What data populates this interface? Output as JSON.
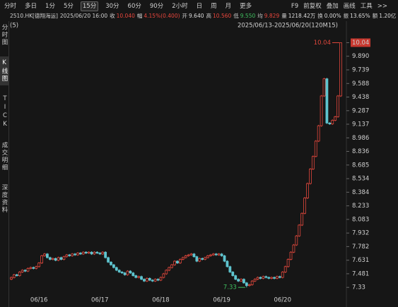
{
  "toolbar": {
    "periods": [
      "分时",
      "多日",
      "1分",
      "5分",
      "15分",
      "30分",
      "60分",
      "90分",
      "2小时",
      "日",
      "周",
      "月",
      "更多"
    ],
    "tools": [
      "F9",
      "前复权",
      "叠加",
      "画线",
      "工具",
      ">>"
    ]
  },
  "sidebar": [
    "分时图",
    "K线图",
    "TICK",
    "成交明细",
    "深度资料"
  ],
  "quote": {
    "symbol": "2510.HK[德翔海运]",
    "datetime": "2025/06/20 16:00",
    "fields": [
      {
        "label": "收",
        "value": "10.040",
        "color": "#e8463c"
      },
      {
        "label": "幅",
        "value": "4.15%(0.400)",
        "color": "#e8463c"
      },
      {
        "label": "开",
        "value": "9.640",
        "color": "#dddddd"
      },
      {
        "label": "高",
        "value": "10.560",
        "color": "#e8463c"
      },
      {
        "label": "低",
        "value": "9.550",
        "color": "#3fbf5f"
      },
      {
        "label": "均",
        "value": "9.829",
        "color": "#e8463c"
      },
      {
        "label": "量",
        "value": "1218.42万",
        "color": "#dddddd"
      },
      {
        "label": "换",
        "value": "0.00%",
        "color": "#dddddd"
      },
      {
        "label": "振",
        "value": "13.65%",
        "color": "#dddddd"
      },
      {
        "label": "额",
        "value": "1.20亿",
        "color": "#dddddd"
      }
    ]
  },
  "chart_data": {
    "type": "candlestick",
    "indicator": "(5)",
    "range": "2025/06/13-2025/06/20(120M15)",
    "open": [
      7.42,
      7.44,
      7.47,
      7.46,
      7.5,
      7.52,
      7.51,
      7.54,
      7.55,
      7.54,
      7.56,
      7.6,
      7.68,
      7.7,
      7.66,
      7.64,
      7.65,
      7.63,
      7.66,
      7.64,
      7.67,
      7.69,
      7.68,
      7.7,
      7.69,
      7.71,
      7.7,
      7.72,
      7.71,
      7.72,
      7.7,
      7.72,
      7.71,
      7.7,
      7.72,
      7.66,
      7.61,
      7.58,
      7.55,
      7.52,
      7.5,
      7.49,
      7.47,
      7.51,
      7.49,
      7.46,
      7.44,
      7.45,
      7.42,
      7.4,
      7.43,
      7.41,
      7.4,
      7.42,
      7.41,
      7.44,
      7.48,
      7.52,
      7.55,
      7.58,
      7.62,
      7.6,
      7.64,
      7.66,
      7.68,
      7.69,
      7.7,
      7.67,
      7.62,
      7.65,
      7.64,
      7.66,
      7.68,
      7.69,
      7.7,
      7.69,
      7.7,
      7.68,
      7.62,
      7.56,
      7.5,
      7.46,
      7.42,
      7.4,
      7.42,
      7.38,
      7.35,
      7.36,
      7.4,
      7.42,
      7.44,
      7.43,
      7.45,
      7.44,
      7.43,
      7.44,
      7.43,
      7.45,
      7.44,
      7.5,
      7.56,
      7.64,
      7.72,
      7.8,
      7.9,
      8.02,
      8.15,
      8.32,
      8.48,
      8.64,
      8.78,
      8.95,
      9.12,
      9.45,
      9.64,
      9.15,
      9.14,
      9.18,
      9.22,
      9.45
    ],
    "high": [
      7.45,
      7.48,
      7.48,
      7.51,
      7.53,
      7.53,
      7.55,
      7.56,
      7.56,
      7.57,
      7.61,
      7.69,
      7.71,
      7.71,
      7.67,
      7.66,
      7.66,
      7.67,
      7.67,
      7.68,
      7.7,
      7.7,
      7.71,
      7.71,
      7.72,
      7.72,
      7.73,
      7.73,
      7.73,
      7.73,
      7.73,
      7.73,
      7.72,
      7.73,
      7.73,
      7.67,
      7.62,
      7.59,
      7.56,
      7.53,
      7.51,
      7.5,
      7.52,
      7.52,
      7.5,
      7.47,
      7.46,
      7.46,
      7.43,
      7.44,
      7.44,
      7.42,
      7.43,
      7.43,
      7.45,
      7.49,
      7.53,
      7.56,
      7.59,
      7.63,
      7.63,
      7.65,
      7.67,
      7.69,
      7.7,
      7.71,
      7.71,
      7.68,
      7.66,
      7.66,
      7.67,
      7.69,
      7.7,
      7.71,
      7.71,
      7.71,
      7.71,
      7.69,
      7.63,
      7.57,
      7.51,
      7.47,
      7.43,
      7.43,
      7.43,
      7.39,
      7.37,
      7.41,
      7.43,
      7.45,
      7.45,
      7.46,
      7.46,
      7.45,
      7.45,
      7.45,
      7.46,
      7.46,
      7.51,
      7.57,
      7.65,
      7.73,
      7.81,
      7.91,
      8.03,
      8.16,
      8.33,
      8.49,
      8.65,
      8.79,
      8.96,
      9.13,
      9.46,
      9.65,
      9.65,
      9.16,
      9.19,
      9.23,
      9.46,
      10.04
    ],
    "low": [
      7.41,
      7.43,
      7.45,
      7.45,
      7.49,
      7.5,
      7.5,
      7.53,
      7.53,
      7.53,
      7.55,
      7.59,
      7.67,
      7.65,
      7.63,
      7.63,
      7.62,
      7.62,
      7.63,
      7.63,
      7.66,
      7.67,
      7.67,
      7.68,
      7.68,
      7.69,
      7.69,
      7.7,
      7.7,
      7.69,
      7.69,
      7.7,
      7.69,
      7.69,
      7.65,
      7.6,
      7.57,
      7.54,
      7.51,
      7.49,
      7.48,
      7.46,
      7.46,
      7.48,
      7.45,
      7.43,
      7.43,
      7.41,
      7.39,
      7.39,
      7.4,
      7.39,
      7.39,
      7.4,
      7.4,
      7.43,
      7.47,
      7.51,
      7.54,
      7.57,
      7.59,
      7.59,
      7.63,
      7.65,
      7.67,
      7.68,
      7.66,
      7.61,
      7.61,
      7.63,
      7.63,
      7.65,
      7.67,
      7.68,
      7.68,
      7.68,
      7.67,
      7.61,
      7.55,
      7.49,
      7.45,
      7.41,
      7.39,
      7.39,
      7.37,
      7.33,
      7.34,
      7.35,
      7.39,
      7.41,
      7.42,
      7.42,
      7.43,
      7.42,
      7.42,
      7.42,
      7.42,
      7.43,
      7.43,
      7.49,
      7.55,
      7.63,
      7.71,
      7.79,
      7.89,
      8.01,
      8.14,
      8.31,
      8.47,
      8.63,
      8.77,
      8.94,
      9.11,
      9.44,
      9.14,
      9.13,
      9.13,
      9.17,
      9.21,
      9.44
    ],
    "close": [
      7.44,
      7.47,
      7.46,
      7.5,
      7.52,
      7.51,
      7.54,
      7.55,
      7.54,
      7.56,
      7.6,
      7.68,
      7.7,
      7.66,
      7.64,
      7.65,
      7.63,
      7.66,
      7.64,
      7.67,
      7.69,
      7.68,
      7.7,
      7.69,
      7.71,
      7.7,
      7.72,
      7.71,
      7.72,
      7.7,
      7.72,
      7.71,
      7.7,
      7.72,
      7.66,
      7.61,
      7.58,
      7.55,
      7.52,
      7.5,
      7.49,
      7.47,
      7.51,
      7.49,
      7.46,
      7.44,
      7.45,
      7.42,
      7.4,
      7.43,
      7.41,
      7.4,
      7.42,
      7.41,
      7.44,
      7.48,
      7.52,
      7.55,
      7.58,
      7.62,
      7.6,
      7.64,
      7.66,
      7.68,
      7.69,
      7.7,
      7.67,
      7.62,
      7.65,
      7.64,
      7.66,
      7.68,
      7.69,
      7.7,
      7.69,
      7.7,
      7.68,
      7.62,
      7.56,
      7.5,
      7.46,
      7.42,
      7.4,
      7.42,
      7.38,
      7.35,
      7.36,
      7.4,
      7.42,
      7.44,
      7.43,
      7.45,
      7.44,
      7.43,
      7.44,
      7.43,
      7.45,
      7.44,
      7.5,
      7.56,
      7.64,
      7.72,
      7.8,
      7.9,
      8.02,
      8.15,
      8.32,
      8.48,
      8.64,
      8.78,
      8.95,
      9.12,
      9.45,
      9.64,
      9.15,
      9.14,
      9.18,
      9.22,
      9.45,
      10.04
    ],
    "ylim": [
      7.23,
      10.2
    ],
    "yticks": [
      10.04,
      {
        "value": 9.89,
        "label": "9.890"
      },
      9.739,
      9.588,
      9.438,
      9.287,
      9.137,
      8.986,
      8.836,
      8.685,
      8.534,
      8.384,
      8.233,
      8.083,
      7.932,
      7.782,
      7.631,
      7.481,
      7.33
    ],
    "xlim": [
      0,
      119
    ],
    "xticks": [
      {
        "value": 10,
        "label": "06/16"
      },
      {
        "value": 32,
        "label": "06/17"
      },
      {
        "value": 54,
        "label": "06/18"
      },
      {
        "value": 76,
        "label": "06/19"
      },
      {
        "value": 98,
        "label": "06/20"
      }
    ],
    "up_color": "#e0473c",
    "down_color": "#5ec4cf",
    "max_color": "#e0473c",
    "min_color": "#3fbf5f",
    "last_color": "#c8382f"
  }
}
